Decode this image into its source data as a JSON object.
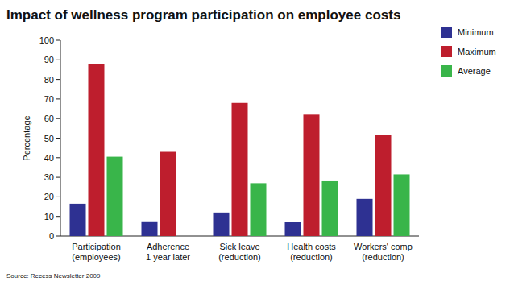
{
  "chart_data": {
    "type": "bar",
    "title": "Impact of wellness program participation on employee costs",
    "ylabel": "Percentage",
    "annotations": [
      "Source: Recess Newsletter 2009"
    ],
    "categories": [
      "Participation\n(employees)",
      "Adherence\n1 year later",
      "Sick leave\n(reduction)",
      "Health costs\n(reduction)",
      "Workers' comp\n(reduction)"
    ],
    "series": [
      {
        "name": "Minimum",
        "color": "#2e3192",
        "values": [
          16.5,
          7.5,
          12,
          7,
          19
        ]
      },
      {
        "name": "Maximum",
        "color": "#be1e2d",
        "values": [
          88,
          43,
          68,
          62,
          51.5
        ]
      },
      {
        "name": "Average",
        "color": "#39b54a",
        "values": [
          40.5,
          null,
          27,
          28,
          31.5
        ]
      }
    ],
    "ylim": [
      0,
      100
    ],
    "yticks": [
      0,
      10,
      20,
      30,
      40,
      50,
      60,
      70,
      80,
      90,
      100
    ],
    "grid": false,
    "legend": "right"
  }
}
